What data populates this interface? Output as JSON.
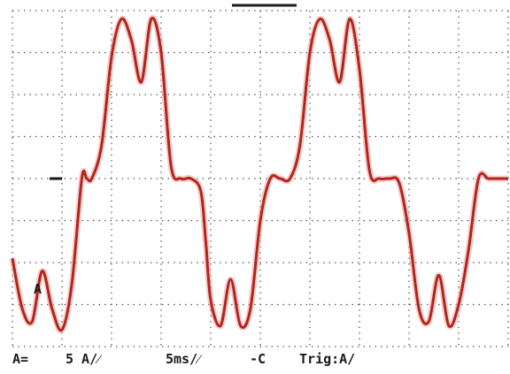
{
  "chart_data": {
    "type": "line",
    "title": "",
    "xlabel": "",
    "ylabel": "",
    "divisions_x": 10,
    "divisions_y": 8,
    "xlim": [
      0,
      10
    ],
    "ylim": [
      -4,
      4
    ],
    "grid": true,
    "grid_style": "dotted",
    "series": [
      {
        "color": "#b5231c",
        "x": [
          0.0,
          0.2,
          0.4,
          0.6,
          0.8,
          1.0,
          1.2,
          1.4,
          1.5,
          1.6,
          1.8,
          2.0,
          2.2,
          2.4,
          2.6,
          2.8,
          3.0,
          3.2,
          3.4,
          3.6,
          3.8,
          3.9,
          4.0,
          4.2,
          4.4,
          4.6,
          4.8,
          5.0,
          5.2,
          5.4,
          5.6,
          5.8,
          6.0,
          6.2,
          6.4,
          6.6,
          6.8,
          7.0,
          7.2,
          7.4,
          7.6,
          7.8,
          8.0,
          8.2,
          8.4,
          8.6,
          8.8,
          9.0,
          9.2,
          9.4,
          9.6,
          9.8,
          10.0
        ],
        "y": [
          -1.9,
          -3.1,
          -3.4,
          -2.2,
          -3.1,
          -3.6,
          -2.5,
          0.0,
          0.0,
          0.0,
          0.8,
          2.9,
          3.8,
          3.3,
          2.3,
          3.8,
          3.0,
          0.3,
          0.0,
          0.0,
          -0.3,
          -1.5,
          -2.9,
          -3.5,
          -2.4,
          -3.5,
          -3.1,
          -1.0,
          0.0,
          0.0,
          0.0,
          0.8,
          3.0,
          3.8,
          3.3,
          2.3,
          3.8,
          2.6,
          0.2,
          0.0,
          0.0,
          -0.1,
          -1.3,
          -3.1,
          -3.4,
          -2.3,
          -3.5,
          -3.0,
          -1.7,
          0.0,
          0.0,
          0.0,
          0.0
        ]
      }
    ],
    "channel_marker": "A",
    "ground_marker_y": 0.0
  },
  "status_bar": {
    "channel": "A=",
    "volts_per_div": "5 A/⁄",
    "time_per_div": "5ms/⁄",
    "offset": "-C",
    "trigger": "Trig:A/"
  },
  "colors": {
    "trace": "#b5231c",
    "grid": "#555555",
    "text": "#1a1a1a"
  }
}
